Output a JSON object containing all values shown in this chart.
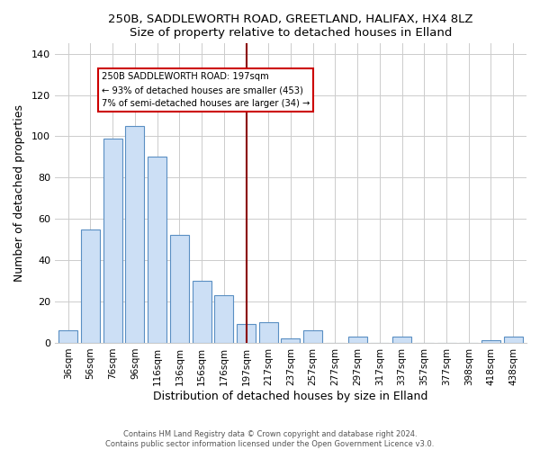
{
  "title_line1": "250B, SADDLEWORTH ROAD, GREETLAND, HALIFAX, HX4 8LZ",
  "title_line2": "Size of property relative to detached houses in Elland",
  "xlabel": "Distribution of detached houses by size in Elland",
  "ylabel": "Number of detached properties",
  "bar_labels": [
    "36sqm",
    "56sqm",
    "76sqm",
    "96sqm",
    "116sqm",
    "136sqm",
    "156sqm",
    "176sqm",
    "197sqm",
    "217sqm",
    "237sqm",
    "257sqm",
    "277sqm",
    "297sqm",
    "317sqm",
    "337sqm",
    "357sqm",
    "377sqm",
    "398sqm",
    "418sqm",
    "438sqm"
  ],
  "bar_values": [
    6,
    55,
    99,
    105,
    90,
    52,
    30,
    23,
    9,
    10,
    2,
    6,
    0,
    3,
    0,
    3,
    0,
    0,
    0,
    1,
    3
  ],
  "bar_color": "#ccdff5",
  "bar_edge_color": "#5a8fc3",
  "marker_index": 8,
  "marker_color": "#8b0000",
  "annotation_title": "250B SADDLEWORTH ROAD: 197sqm",
  "annotation_line1": "← 93% of detached houses are smaller (453)",
  "annotation_line2": "7% of semi-detached houses are larger (34) →",
  "annotation_box_color": "white",
  "annotation_box_edge": "#cc0000",
  "ylim": [
    0,
    145
  ],
  "yticks": [
    0,
    20,
    40,
    60,
    80,
    100,
    120,
    140
  ],
  "footer1": "Contains HM Land Registry data © Crown copyright and database right 2024.",
  "footer2": "Contains public sector information licensed under the Open Government Licence v3.0."
}
